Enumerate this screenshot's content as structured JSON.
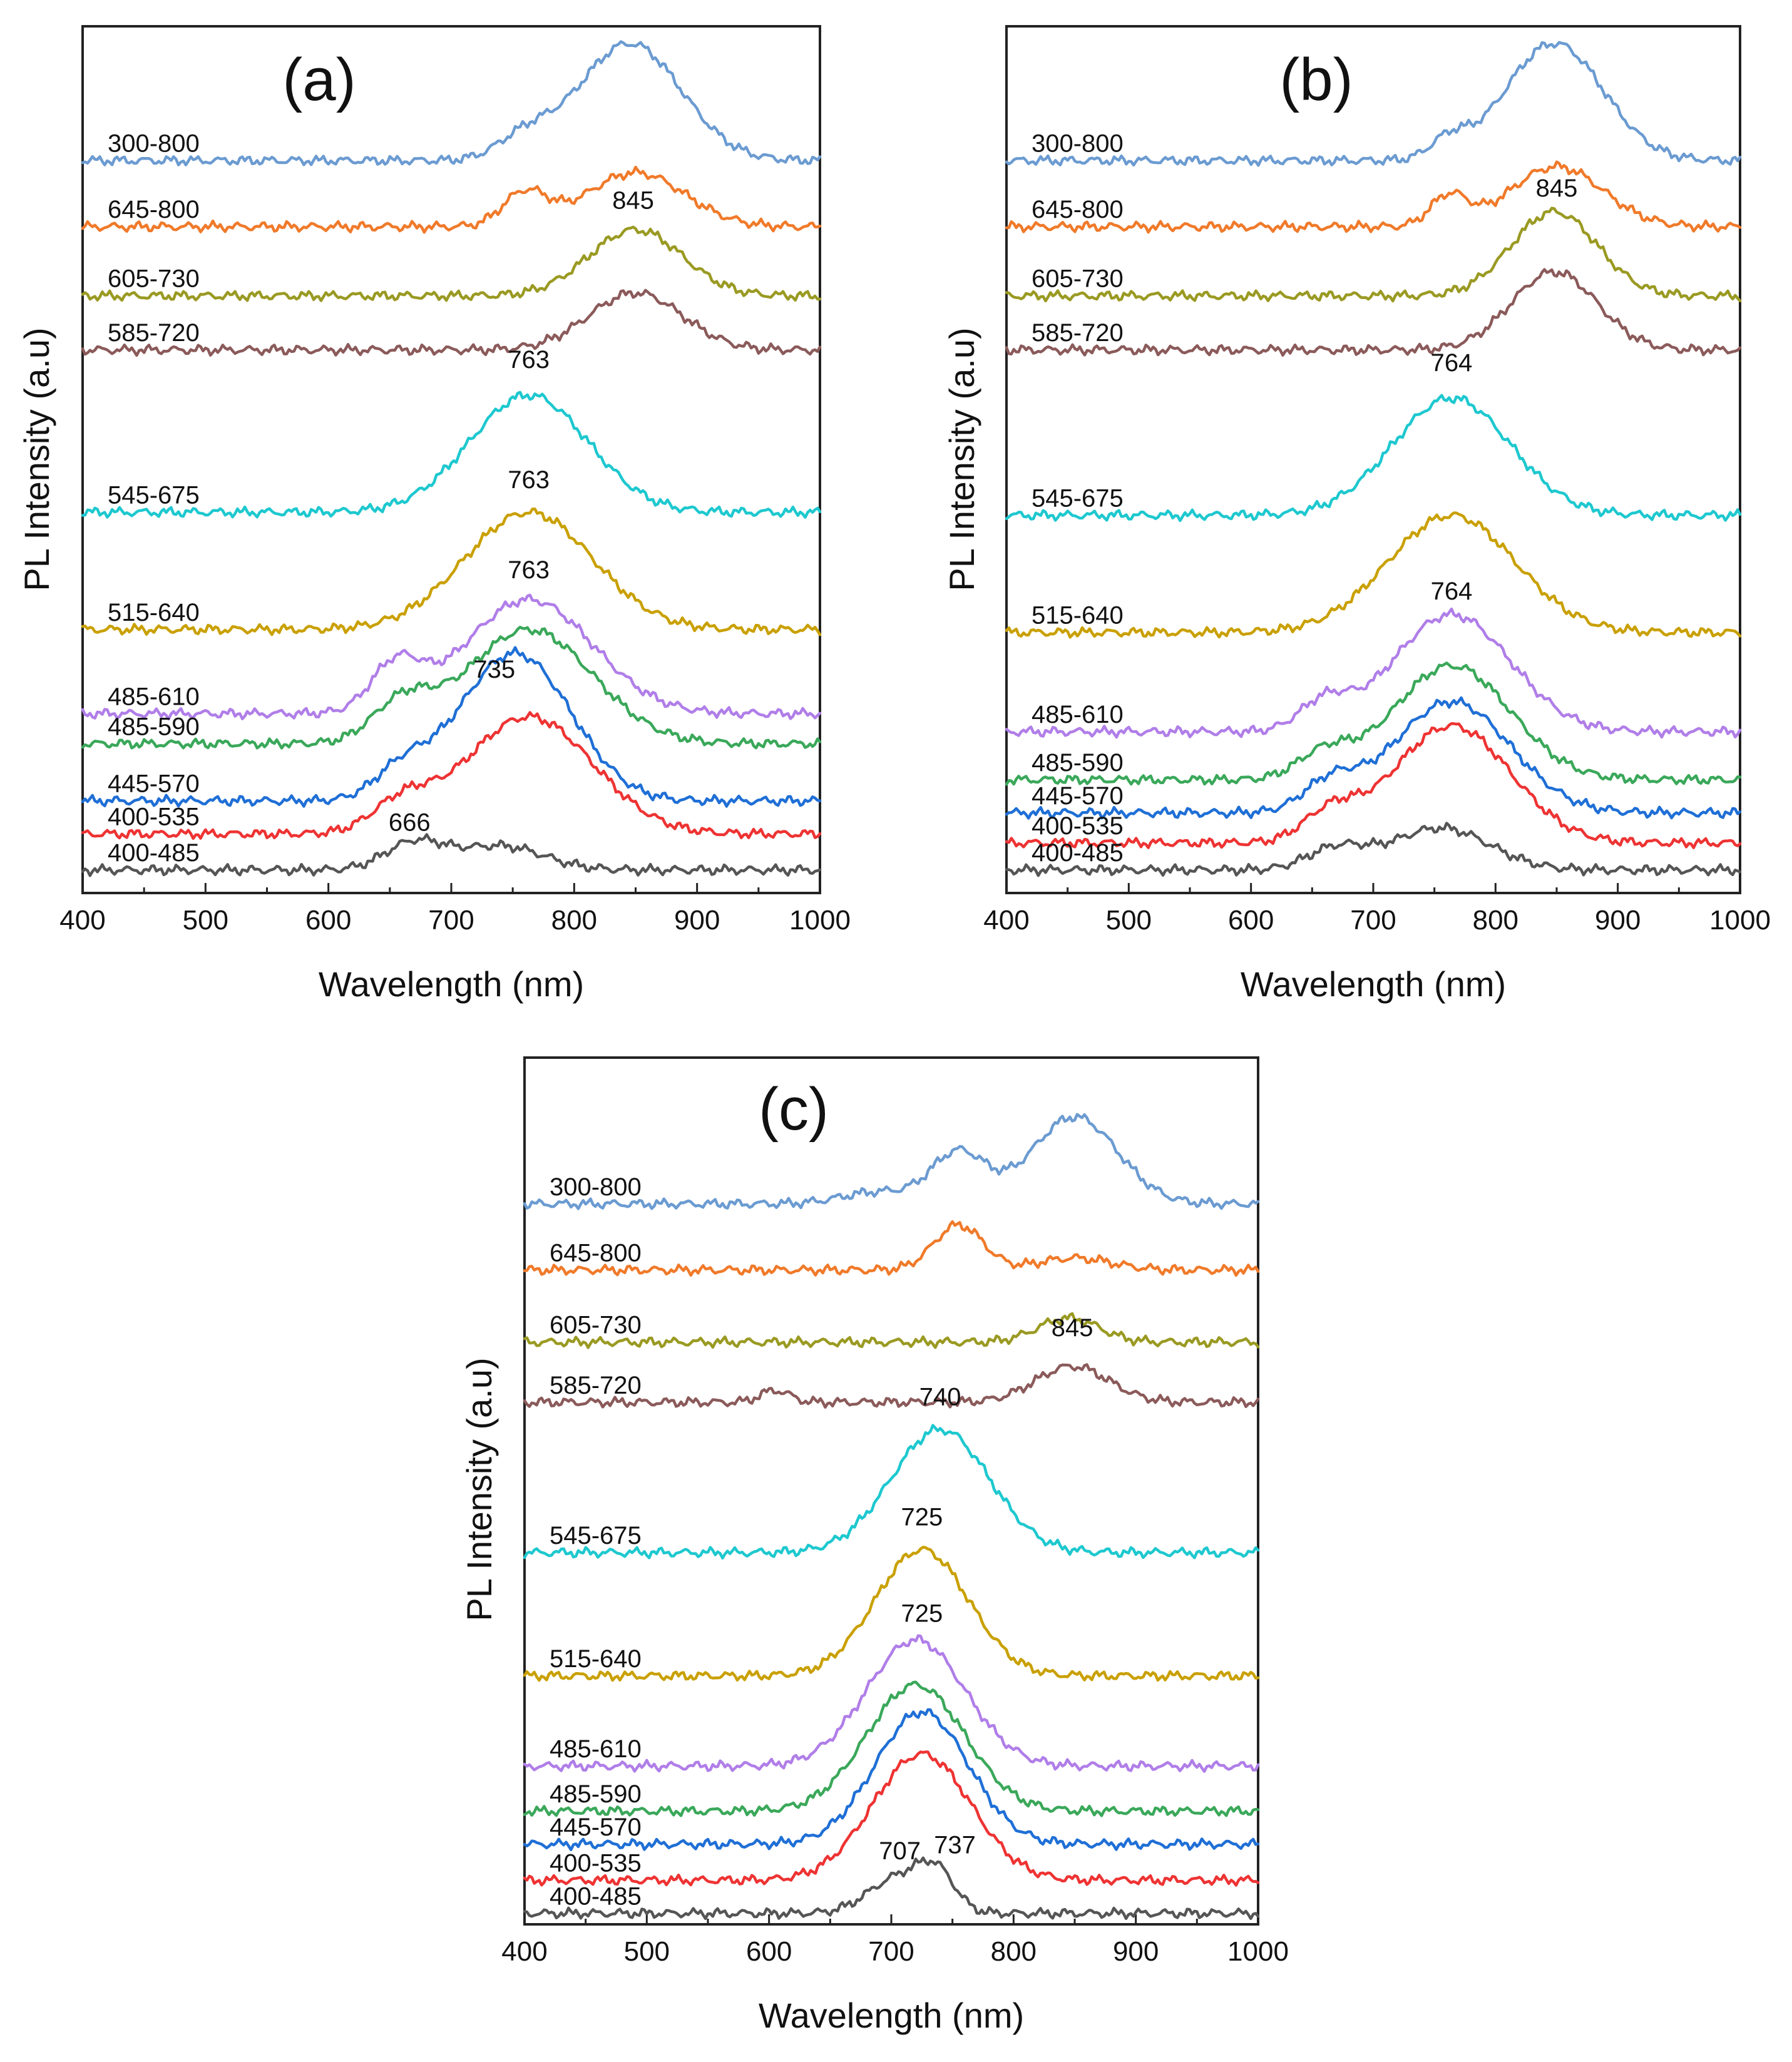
{
  "chart_data": [
    {
      "type": "line",
      "panel_label": "(a)",
      "xlabel": "Wavelength (nm)",
      "ylabel": "PL Intensity (a.u)",
      "xlim": [
        400,
        1000
      ],
      "x_ticks": [
        "400",
        "500",
        "600",
        "700",
        "800",
        "900",
        "1000"
      ],
      "ylim": [
        0,
        14
      ],
      "series": [
        {
          "name": "300-800",
          "color": "#6b9bd1",
          "baseline": 12.1,
          "peaks": [
            {
              "c": 760,
              "w": 22,
              "a": 0.35
            },
            {
              "c": 845,
              "w": 42,
              "a": 1.95
            }
          ]
        },
        {
          "name": "645-800",
          "color": "#f07a2a",
          "baseline": 11.0,
          "peaks": [
            {
              "c": 760,
              "w": 18,
              "a": 0.55
            },
            {
              "c": 850,
              "w": 40,
              "a": 0.9
            }
          ]
        },
        {
          "name": "605-730",
          "color": "#9a9a23",
          "baseline": 9.85,
          "peaks": [
            {
              "c": 850,
              "w": 38,
              "a": 1.1
            }
          ]
        },
        {
          "name": "585-720",
          "color": "#8b5a5a",
          "baseline": 8.95,
          "peaks": [
            {
              "c": 850,
              "w": 38,
              "a": 0.95
            }
          ]
        },
        {
          "name": "545-675",
          "color": "#1ec8cf",
          "baseline": 6.25,
          "peaks": [
            {
              "c": 763,
              "w": 48,
              "a": 1.95
            }
          ]
        },
        {
          "name": "515-640",
          "color": "#c9a000",
          "baseline": 4.3,
          "peaks": [
            {
              "c": 763,
              "w": 52,
              "a": 1.95
            }
          ]
        },
        {
          "name": "485-610",
          "color": "#b07ee8",
          "baseline": 2.9,
          "peaks": [
            {
              "c": 763,
              "w": 52,
              "a": 1.9
            },
            {
              "c": 655,
              "w": 20,
              "a": 0.75
            }
          ]
        },
        {
          "name": "485-590",
          "color": "#3aa85a",
          "baseline": 2.4,
          "peaks": [
            {
              "c": 763,
              "w": 52,
              "a": 1.9
            },
            {
              "c": 660,
              "w": 24,
              "a": 0.6
            }
          ]
        },
        {
          "name": "445-570",
          "color": "#1f6fd6",
          "baseline": 1.45,
          "peaks": [
            {
              "c": 738,
              "w": 42,
              "a": 1.7
            },
            {
              "c": 775,
              "w": 40,
              "a": 1.0
            },
            {
              "c": 660,
              "w": 22,
              "a": 0.45
            }
          ]
        },
        {
          "name": "400-535",
          "color": "#ee3333",
          "baseline": 0.9,
          "peaks": [
            {
              "c": 763,
              "w": 52,
              "a": 1.95
            },
            {
              "c": 660,
              "w": 24,
              "a": 0.45
            }
          ]
        },
        {
          "name": "400-485",
          "color": "#555555",
          "baseline": 0.3,
          "peaks": [
            {
              "c": 670,
              "w": 24,
              "a": 0.45
            },
            {
              "c": 740,
              "w": 35,
              "a": 0.4
            }
          ]
        }
      ],
      "annotations": [
        {
          "text": "845",
          "x": 848,
          "y": 11.3
        },
        {
          "text": "763",
          "x": 763,
          "y": 8.65
        },
        {
          "text": "763",
          "x": 763,
          "y": 6.65
        },
        {
          "text": "763",
          "x": 763,
          "y": 5.15
        },
        {
          "text": "735",
          "x": 735,
          "y": 3.5
        },
        {
          "text": "666",
          "x": 666,
          "y": 0.95
        }
      ]
    },
    {
      "type": "line",
      "panel_label": "(b)",
      "xlabel": "Wavelength (nm)",
      "ylabel": "PL Intensity (a.u)",
      "xlim": [
        400,
        1000
      ],
      "x_ticks": [
        "400",
        "500",
        "600",
        "700",
        "800",
        "900",
        "1000"
      ],
      "ylim": [
        0,
        14
      ],
      "series": [
        {
          "name": "300-800",
          "color": "#6b9bd1",
          "baseline": 12.1,
          "peaks": [
            {
              "c": 762,
              "w": 15,
              "a": 0.3
            },
            {
              "c": 848,
              "w": 40,
              "a": 1.95
            }
          ]
        },
        {
          "name": "645-800",
          "color": "#f07a2a",
          "baseline": 11.0,
          "peaks": [
            {
              "c": 762,
              "w": 15,
              "a": 0.5
            },
            {
              "c": 850,
              "w": 38,
              "a": 1.0
            }
          ]
        },
        {
          "name": "605-730",
          "color": "#9a9a23",
          "baseline": 9.85,
          "peaks": [
            {
              "c": 848,
              "w": 35,
              "a": 1.4
            }
          ]
        },
        {
          "name": "585-720",
          "color": "#8b5a5a",
          "baseline": 8.95,
          "peaks": [
            {
              "c": 848,
              "w": 35,
              "a": 1.3
            }
          ]
        },
        {
          "name": "545-675",
          "color": "#1ec8cf",
          "baseline": 6.2,
          "peaks": [
            {
              "c": 764,
              "w": 48,
              "a": 1.95
            }
          ]
        },
        {
          "name": "515-640",
          "color": "#c9a000",
          "baseline": 4.25,
          "peaks": [
            {
              "c": 764,
              "w": 52,
              "a": 1.95
            }
          ]
        },
        {
          "name": "485-610",
          "color": "#b07ee8",
          "baseline": 2.6,
          "peaks": [
            {
              "c": 764,
              "w": 48,
              "a": 1.95
            },
            {
              "c": 660,
              "w": 20,
              "a": 0.45
            }
          ]
        },
        {
          "name": "485-590",
          "color": "#3aa85a",
          "baseline": 1.8,
          "peaks": [
            {
              "c": 764,
              "w": 48,
              "a": 1.9
            },
            {
              "c": 660,
              "w": 22,
              "a": 0.4
            }
          ]
        },
        {
          "name": "445-570",
          "color": "#1f6fd6",
          "baseline": 1.25,
          "peaks": [
            {
              "c": 764,
              "w": 48,
              "a": 1.85
            },
            {
              "c": 665,
              "w": 22,
              "a": 0.45
            }
          ]
        },
        {
          "name": "400-535",
          "color": "#ee3333",
          "baseline": 0.75,
          "peaks": [
            {
              "c": 764,
              "w": 48,
              "a": 1.95
            },
            {
              "c": 665,
              "w": 22,
              "a": 0.45
            }
          ]
        },
        {
          "name": "400-485",
          "color": "#555555",
          "baseline": 0.3,
          "peaks": [
            {
              "c": 670,
              "w": 24,
              "a": 0.35
            },
            {
              "c": 755,
              "w": 40,
              "a": 0.7
            }
          ]
        }
      ],
      "annotations": [
        {
          "text": "845",
          "x": 850,
          "y": 11.5
        },
        {
          "text": "764",
          "x": 764,
          "y": 8.6
        },
        {
          "text": "764",
          "x": 764,
          "y": 4.8
        }
      ]
    },
    {
      "type": "line",
      "panel_label": "(c)",
      "xlabel": "Wavelength (nm)",
      "ylabel": "PL Intensity (a.u)",
      "xlim": [
        400,
        1000
      ],
      "x_ticks": [
        "400",
        "500",
        "600",
        "700",
        "800",
        "900",
        "1000"
      ],
      "ylim": [
        0,
        14
      ],
      "series": [
        {
          "name": "300-800",
          "color": "#6b9bd1",
          "baseline": 11.9,
          "peaks": [
            {
              "c": 755,
              "w": 22,
              "a": 0.85
            },
            {
              "c": 850,
              "w": 35,
              "a": 1.45
            },
            {
              "c": 690,
              "w": 30,
              "a": 0.2
            }
          ]
        },
        {
          "name": "645-800",
          "color": "#f07a2a",
          "baseline": 10.8,
          "peaks": [
            {
              "c": 755,
              "w": 20,
              "a": 0.75
            },
            {
              "c": 850,
              "w": 30,
              "a": 0.2
            }
          ]
        },
        {
          "name": "605-730",
          "color": "#9a9a23",
          "baseline": 9.6,
          "peaks": [
            {
              "c": 845,
              "w": 25,
              "a": 0.4
            }
          ]
        },
        {
          "name": "585-720",
          "color": "#8b5a5a",
          "baseline": 8.6,
          "peaks": [
            {
              "c": 848,
              "w": 30,
              "a": 0.6
            },
            {
              "c": 605,
              "w": 12,
              "a": 0.2
            }
          ]
        },
        {
          "name": "545-675",
          "color": "#1ec8cf",
          "baseline": 6.1,
          "peaks": [
            {
              "c": 740,
              "w": 40,
              "a": 2.05
            }
          ]
        },
        {
          "name": "515-640",
          "color": "#c9a000",
          "baseline": 4.05,
          "peaks": [
            {
              "c": 725,
              "w": 38,
              "a": 2.1
            }
          ]
        },
        {
          "name": "485-610",
          "color": "#b07ee8",
          "baseline": 2.55,
          "peaks": [
            {
              "c": 720,
              "w": 40,
              "a": 2.1
            }
          ]
        },
        {
          "name": "485-590",
          "color": "#3aa85a",
          "baseline": 1.8,
          "peaks": [
            {
              "c": 720,
              "w": 40,
              "a": 2.1
            }
          ]
        },
        {
          "name": "445-570",
          "color": "#1f6fd6",
          "baseline": 1.25,
          "peaks": [
            {
              "c": 725,
              "w": 38,
              "a": 2.2
            }
          ]
        },
        {
          "name": "400-535",
          "color": "#ee3333",
          "baseline": 0.65,
          "peaks": [
            {
              "c": 725,
              "w": 40,
              "a": 2.1
            }
          ]
        },
        {
          "name": "400-485",
          "color": "#555555",
          "baseline": 0.1,
          "peaks": [
            {
              "c": 707,
              "w": 25,
              "a": 0.6
            },
            {
              "c": 737,
              "w": 15,
              "a": 0.55
            }
          ]
        }
      ],
      "annotations": [
        {
          "text": "845",
          "x": 848,
          "y": 9.7
        },
        {
          "text": "740",
          "x": 740,
          "y": 8.55
        },
        {
          "text": "725",
          "x": 725,
          "y": 6.55
        },
        {
          "text": "725",
          "x": 725,
          "y": 4.95
        },
        {
          "text": "707",
          "x": 707,
          "y": 1.0
        },
        {
          "text": "737",
          "x": 752,
          "y": 1.1
        }
      ]
    }
  ]
}
